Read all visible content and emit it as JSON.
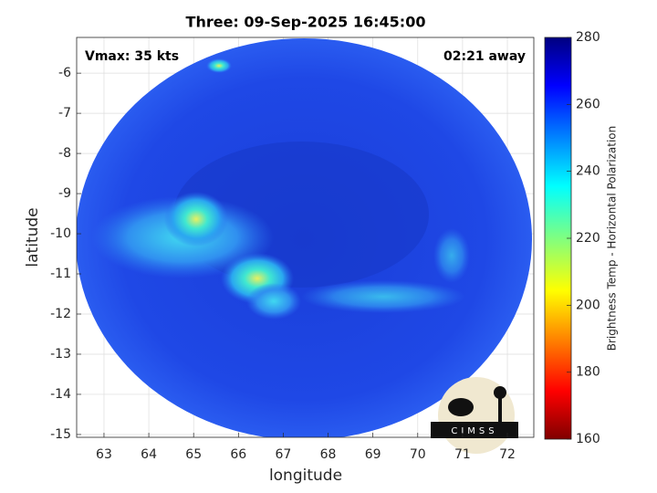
{
  "chart_data": {
    "type": "image-map",
    "title": "Three: 09-Sep-2025 16:45:00",
    "annotations": [
      "Vmax: 35 kts",
      "02:21 away"
    ],
    "x_label": "longitude",
    "y_label": "latitude",
    "xlim": [
      62.39,
      72.59
    ],
    "xticks": [
      63,
      64,
      65,
      66,
      67,
      68,
      69,
      70,
      71,
      72
    ],
    "ylim": [
      -15.07,
      -5.11
    ],
    "yticks": [
      -15,
      -14,
      -13,
      -12,
      -11,
      -10,
      -9,
      -8,
      -7,
      -6
    ],
    "grid": true,
    "colorbar": {
      "label": "Brightness Temp - Horizontal Polarization",
      "lim": [
        160,
        280
      ],
      "ticks": [
        160,
        180,
        200,
        220,
        240,
        260,
        280
      ]
    },
    "logo": "CIMSS"
  }
}
